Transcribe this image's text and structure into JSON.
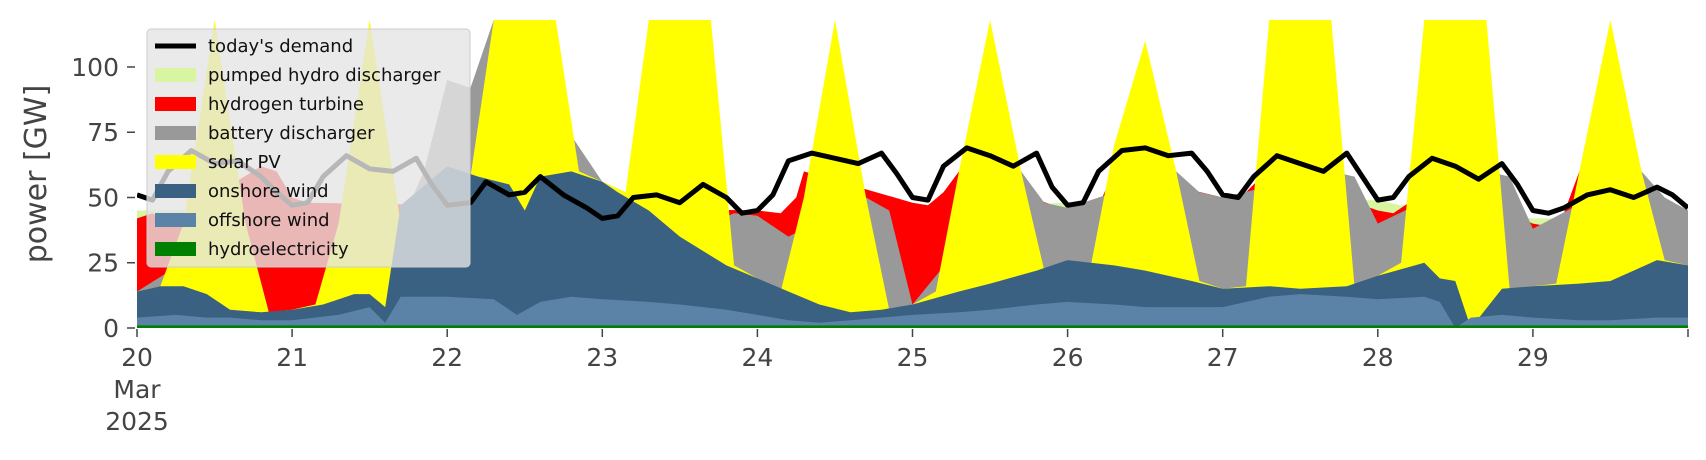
{
  "chart_data": {
    "type": "area",
    "ylabel": "power [GW]",
    "ylim": [
      0,
      118
    ],
    "yticks": [
      0,
      25,
      50,
      75,
      100
    ],
    "xlim": [
      20,
      30
    ],
    "xticks": [
      {
        "x": 20,
        "lines": [
          "20",
          "Mar",
          "2025"
        ]
      },
      {
        "x": 21,
        "lines": [
          "21"
        ]
      },
      {
        "x": 22,
        "lines": [
          "22"
        ]
      },
      {
        "x": 23,
        "lines": [
          "23"
        ]
      },
      {
        "x": 24,
        "lines": [
          "24"
        ]
      },
      {
        "x": 25,
        "lines": [
          "25"
        ]
      },
      {
        "x": 26,
        "lines": [
          "26"
        ]
      },
      {
        "x": 27,
        "lines": [
          "27"
        ]
      },
      {
        "x": 28,
        "lines": [
          "28"
        ]
      },
      {
        "x": 29,
        "lines": [
          "29"
        ]
      }
    ],
    "legend": {
      "placement": "top-left",
      "entries": [
        {
          "label": "today's demand",
          "color": "#000000",
          "kind": "line"
        },
        {
          "label": "pumped hydro discharger",
          "color": "#d8f5a2",
          "kind": "area"
        },
        {
          "label": "hydrogen turbine",
          "color": "#ff0000",
          "kind": "area"
        },
        {
          "label": "battery discharger",
          "color": "#999999",
          "kind": "area"
        },
        {
          "label": "solar PV",
          "color": "#ffff00",
          "kind": "area"
        },
        {
          "label": "onshore wind",
          "color": "#3b6182",
          "kind": "area"
        },
        {
          "label": "offshore wind",
          "color": "#5b83a8",
          "kind": "area"
        },
        {
          "label": "hydroelectricity",
          "color": "#008000",
          "kind": "area"
        }
      ]
    },
    "stack_order": [
      "hydroelectricity",
      "offshore wind",
      "onshore wind",
      "solar PV",
      "battery discharger",
      "hydrogen turbine",
      "pumped hydro discharger"
    ],
    "series": [
      {
        "name": "hydroelectricity",
        "color": "#008000",
        "x": [
          20.0,
          21.0,
          22.0,
          23.0,
          24.0,
          25.0,
          26.0,
          27.0,
          28.0,
          29.0,
          30.0
        ],
        "y": [
          1,
          1,
          1,
          1,
          1,
          1,
          1,
          1,
          1,
          1,
          1
        ]
      },
      {
        "name": "offshore wind",
        "color": "#5b83a8",
        "x": [
          20.0,
          20.25,
          20.45,
          20.6,
          20.8,
          21.0,
          21.3,
          21.5,
          21.6,
          21.7,
          22.0,
          22.3,
          22.45,
          22.6,
          22.8,
          23.0,
          23.3,
          23.5,
          23.8,
          24.0,
          24.2,
          24.4,
          24.6,
          24.8,
          25.0,
          25.3,
          25.5,
          25.8,
          26.0,
          26.3,
          26.5,
          26.8,
          27.0,
          27.3,
          27.5,
          27.8,
          28.0,
          28.3,
          28.4,
          28.5,
          28.6,
          28.8,
          29.0,
          29.3,
          29.5,
          29.8,
          30.0
        ],
        "y": [
          4,
          5,
          4,
          4,
          3,
          3,
          5,
          8,
          2,
          12,
          12,
          11,
          5,
          10,
          12,
          11,
          10,
          9,
          7,
          5,
          3,
          2,
          3,
          4,
          5,
          6,
          7,
          9,
          10,
          9,
          8,
          8,
          8,
          12,
          13,
          12,
          11,
          12,
          10,
          0,
          4,
          5,
          4,
          3,
          3,
          4,
          4
        ]
      },
      {
        "name": "onshore wind",
        "color": "#3b6182",
        "x": [
          20.0,
          20.15,
          20.3,
          20.45,
          20.6,
          20.8,
          21.0,
          21.2,
          21.4,
          21.5,
          21.6,
          21.7,
          22.0,
          22.2,
          22.4,
          22.5,
          22.6,
          22.8,
          22.9,
          23.0,
          23.1,
          23.3,
          23.5,
          23.8,
          24.0,
          24.2,
          24.4,
          24.6,
          24.8,
          25.0,
          25.3,
          25.5,
          25.8,
          26.0,
          26.3,
          26.5,
          26.8,
          27.0,
          27.3,
          27.5,
          27.8,
          28.0,
          28.3,
          28.4,
          28.5,
          28.6,
          28.8,
          29.0,
          29.3,
          29.5,
          29.8,
          30.0
        ],
        "y": [
          14,
          16,
          16,
          13,
          7,
          6,
          7,
          9,
          13,
          13,
          8,
          47,
          62,
          58,
          55,
          45,
          58,
          60,
          58,
          56,
          52,
          45,
          35,
          24,
          19,
          14,
          9,
          6,
          7,
          9,
          14,
          17,
          22,
          26,
          24,
          22,
          18,
          15,
          16,
          15,
          16,
          20,
          25,
          19,
          18,
          0,
          15,
          16,
          17,
          18,
          26,
          24
        ]
      },
      {
        "name": "solar PV",
        "color": "#ffff00",
        "x": [
          20.0,
          20.15,
          20.3,
          20.5,
          20.7,
          20.85,
          21.0,
          21.15,
          21.3,
          21.5,
          21.7,
          21.85,
          22.0,
          22.15,
          22.3,
          22.5,
          22.7,
          22.85,
          23.0,
          23.15,
          23.3,
          23.5,
          23.7,
          23.85,
          24.0,
          24.15,
          24.3,
          24.5,
          24.7,
          24.85,
          25.0,
          25.15,
          25.3,
          25.5,
          25.7,
          25.85,
          26.0,
          26.15,
          26.3,
          26.5,
          26.7,
          26.85,
          27.0,
          27.15,
          27.3,
          27.5,
          27.7,
          27.85,
          28.0,
          28.15,
          28.3,
          28.5,
          28.7,
          28.85,
          29.0,
          29.15,
          29.3,
          29.5,
          29.7,
          29.85,
          30.0
        ],
        "y": [
          14,
          16,
          40,
          118,
          40,
          6,
          7,
          9,
          40,
          118,
          40,
          47,
          62,
          58,
          118,
          118,
          118,
          60,
          56,
          52,
          118,
          118,
          118,
          24,
          19,
          14,
          50,
          118,
          50,
          7,
          9,
          14,
          60,
          118,
          60,
          22,
          26,
          24,
          70,
          110,
          60,
          18,
          15,
          16,
          118,
          118,
          118,
          16,
          20,
          25,
          118,
          118,
          118,
          15,
          16,
          17,
          60,
          118,
          60,
          26,
          24
        ]
      },
      {
        "name": "battery discharger",
        "color": "#999999",
        "x": [
          20.0,
          20.7,
          20.85,
          21.0,
          21.15,
          21.7,
          21.85,
          22.0,
          22.15,
          22.3,
          23.0,
          23.15,
          23.7,
          23.85,
          24.0,
          24.2,
          24.7,
          24.85,
          25.0,
          25.7,
          25.85,
          26.0,
          26.7,
          26.85,
          27.0,
          27.7,
          27.85,
          28.0,
          28.7,
          28.85,
          29.0,
          29.7,
          29.85,
          30.0
        ],
        "y": [
          14,
          40,
          6,
          7,
          9,
          40,
          60,
          95,
          92,
          118,
          56,
          52,
          40,
          44,
          43,
          35,
          50,
          45,
          9,
          60,
          48,
          46,
          60,
          52,
          50,
          60,
          58,
          40,
          60,
          58,
          38,
          60,
          50,
          45
        ]
      },
      {
        "name": "hydrogen turbine",
        "color": "#ff0000",
        "x": [
          20.0,
          20.1,
          20.2,
          20.8,
          20.9,
          21.0,
          21.1,
          24.0,
          24.15,
          24.25,
          24.3,
          25.0,
          25.1,
          25.2,
          25.3,
          26.0,
          26.1,
          26.2,
          26.3,
          27.0,
          27.1,
          27.2,
          27.3,
          28.0,
          28.1,
          28.2,
          28.3,
          29.0,
          29.1,
          29.2,
          29.3,
          30.0
        ],
        "y": [
          42,
          44,
          40,
          62,
          60,
          50,
          48,
          45,
          44,
          50,
          60,
          48,
          47,
          52,
          60,
          45,
          44,
          47,
          60,
          50,
          49,
          55,
          60,
          45,
          44,
          48,
          60,
          40,
          39,
          44,
          60,
          45
        ]
      },
      {
        "name": "pumped hydro discharger",
        "color": "#d8f5a2",
        "x": [
          20.0,
          24.0,
          24.15,
          26.0,
          28.0,
          28.15,
          29.0,
          29.15,
          30.0
        ],
        "y": [
          45,
          45,
          44,
          48,
          49,
          47,
          42,
          42,
          46
        ]
      },
      {
        "name": "today's demand",
        "color": "#000000",
        "kind": "line",
        "x": [
          20.0,
          20.1,
          20.2,
          20.35,
          20.5,
          20.65,
          20.8,
          20.9,
          21.0,
          21.1,
          21.2,
          21.35,
          21.5,
          21.65,
          21.8,
          21.9,
          22.0,
          22.15,
          22.25,
          22.4,
          22.5,
          22.6,
          22.75,
          22.9,
          23.0,
          23.1,
          23.2,
          23.35,
          23.5,
          23.65,
          23.8,
          23.9,
          24.0,
          24.1,
          24.2,
          24.35,
          24.5,
          24.65,
          24.8,
          24.9,
          25.0,
          25.1,
          25.2,
          25.35,
          25.5,
          25.65,
          25.8,
          25.9,
          26.0,
          26.1,
          26.2,
          26.35,
          26.5,
          26.65,
          26.8,
          26.9,
          27.0,
          27.1,
          27.2,
          27.35,
          27.5,
          27.65,
          27.8,
          27.9,
          28.0,
          28.1,
          28.2,
          28.35,
          28.5,
          28.65,
          28.8,
          28.9,
          29.0,
          29.1,
          29.2,
          29.35,
          29.5,
          29.65,
          29.8,
          29.9,
          30.0
        ],
        "y": [
          51,
          49,
          60,
          68,
          63,
          64,
          58,
          52,
          47,
          48,
          58,
          66,
          61,
          60,
          65,
          55,
          47,
          48,
          56,
          51,
          52,
          58,
          51,
          46,
          42,
          43,
          50,
          51,
          48,
          55,
          50,
          44,
          45,
          51,
          64,
          67,
          65,
          63,
          67,
          59,
          50,
          49,
          62,
          69,
          66,
          62,
          67,
          54,
          47,
          48,
          60,
          68,
          69,
          66,
          67,
          60,
          51,
          50,
          58,
          66,
          63,
          60,
          67,
          58,
          49,
          50,
          58,
          65,
          62,
          57,
          63,
          55,
          45,
          44,
          46,
          51,
          53,
          50,
          54,
          51,
          46
        ]
      }
    ]
  }
}
